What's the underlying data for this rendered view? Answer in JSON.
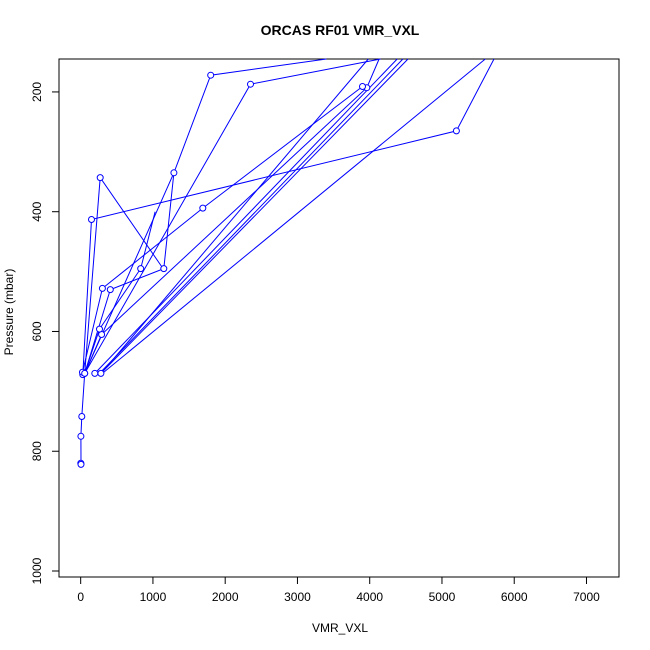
{
  "chart_data": {
    "type": "line",
    "title": "ORCAS RF01 VMR_VXL",
    "xlabel": "VMR_VXL",
    "ylabel": "Pressure (mbar)",
    "xlim": [
      -300,
      7450
    ],
    "ylim": [
      1010,
      145
    ],
    "y_reversed": true,
    "x_ticks": [
      0,
      1000,
      2000,
      3000,
      4000,
      5000,
      6000,
      7000
    ],
    "x_tick_labels": [
      "0",
      "1000",
      "2000",
      "3000",
      "4000",
      "5000",
      "6000",
      "7000"
    ],
    "y_ticks": [
      200,
      400,
      600,
      800,
      1000
    ],
    "y_tick_labels": [
      "200",
      "400",
      "600",
      "800",
      "1000"
    ],
    "grid": false,
    "series": [
      {
        "color": "#0000ff",
        "marker": "open-circle",
        "x": [
          2,
          5,
          3,
          15,
          55,
          30,
          25,
          55,
          270,
          1290,
          1800,
          2350,
          3960,
          5200,
          150,
          300,
          410,
          1690,
          3900,
          290,
          260,
          830,
          1150
        ],
        "y": [
          820,
          822,
          775,
          742,
          670,
          672,
          668,
          670,
          343,
          335,
          172,
          187,
          193,
          265,
          413,
          528,
          530,
          394,
          191,
          605,
          596,
          495,
          495
        ]
      }
    ],
    "segments": [
      {
        "x": [
          2,
          5,
          3,
          15,
          55
        ],
        "y": [
          820,
          822,
          775,
          742,
          670
        ]
      },
      {
        "x": [
          55,
          270,
          1140
        ],
        "y": [
          670,
          343,
          495
        ]
      },
      {
        "x": [
          55,
          1290,
          1800,
          3400
        ],
        "y": [
          670,
          335,
          172,
          145
        ]
      },
      {
        "x": [
          55,
          2350,
          4150
        ],
        "y": [
          670,
          187,
          145
        ]
      },
      {
        "x": [
          30,
          150,
          5200,
          5720
        ],
        "y": [
          672,
          413,
          265,
          145
        ]
      },
      {
        "x": [
          25,
          300,
          1690,
          3900
        ],
        "y": [
          668,
          528,
          394,
          191
        ]
      },
      {
        "x": [
          55,
          410,
          1150,
          1290
        ],
        "y": [
          670,
          530,
          495,
          335
        ]
      },
      {
        "x": [
          55,
          290,
          3960,
          4130
        ],
        "y": [
          670,
          605,
          193,
          145
        ]
      },
      {
        "x": [
          55,
          260,
          830,
          1030
        ],
        "y": [
          670,
          596,
          495,
          400
        ]
      },
      {
        "x": [
          195,
          4380
        ],
        "y": [
          670,
          145
        ]
      },
      {
        "x": [
          260,
          4460
        ],
        "y": [
          670,
          145
        ]
      },
      {
        "x": [
          280,
          4530
        ],
        "y": [
          670,
          145
        ]
      },
      {
        "x": [
          300,
          5600
        ],
        "y": [
          670,
          145
        ]
      },
      {
        "x": [
          270,
          3980
        ],
        "y": [
          672,
          145
        ]
      }
    ],
    "points_extra": [
      {
        "x": 195,
        "y": 670
      },
      {
        "x": 280,
        "y": 670
      }
    ]
  }
}
